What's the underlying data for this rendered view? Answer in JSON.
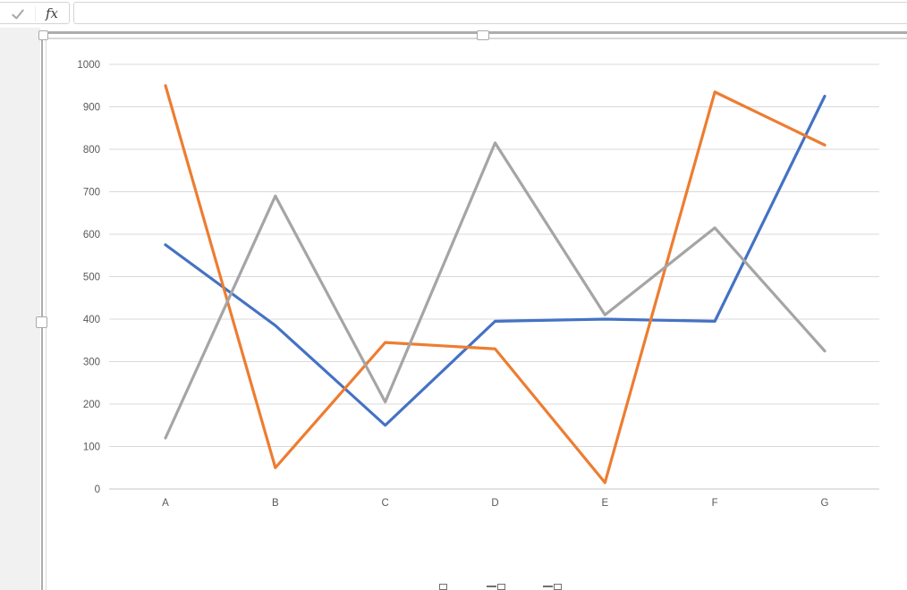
{
  "formula_bar": {
    "enter_icon": "checkmark",
    "fx_label": "fx",
    "input_value": ""
  },
  "chart_data": {
    "type": "line",
    "categories": [
      "A",
      "B",
      "C",
      "D",
      "E",
      "F",
      "G"
    ],
    "series": [
      {
        "key": "blue-series",
        "color": "#4472C4",
        "values": [
          575,
          385,
          150,
          395,
          400,
          395,
          925
        ]
      },
      {
        "key": "orange-series",
        "color": "#ED7D31",
        "values": [
          950,
          50,
          345,
          330,
          15,
          935,
          810
        ]
      },
      {
        "key": "gray-series",
        "color": "#A5A5A5",
        "values": [
          120,
          690,
          205,
          815,
          410,
          615,
          325
        ]
      }
    ],
    "title": "",
    "xlabel": "",
    "ylabel": "",
    "ylim": [
      0,
      1000
    ],
    "ytick_step": 100,
    "yticks": [
      "0",
      "100",
      "200",
      "300",
      "400",
      "500",
      "600",
      "700",
      "800",
      "900",
      "1000"
    ],
    "grid": true,
    "legend": "none"
  },
  "selection": {
    "handles": [
      "corner",
      "top-center",
      "left-middle"
    ]
  },
  "bottom_icons": [
    {
      "name": "small-rect-icon"
    },
    {
      "name": "dash-and-rect-icon"
    },
    {
      "name": "dash-and-rect-icon"
    }
  ],
  "colors": {
    "series_blue": "#4472C4",
    "series_orange": "#ED7D31",
    "series_gray": "#A5A5A5",
    "gridline": "#D9D9D9",
    "axis_line": "#C6C6C6",
    "axis_text": "#595959",
    "selection_border": "#ADADAD"
  }
}
